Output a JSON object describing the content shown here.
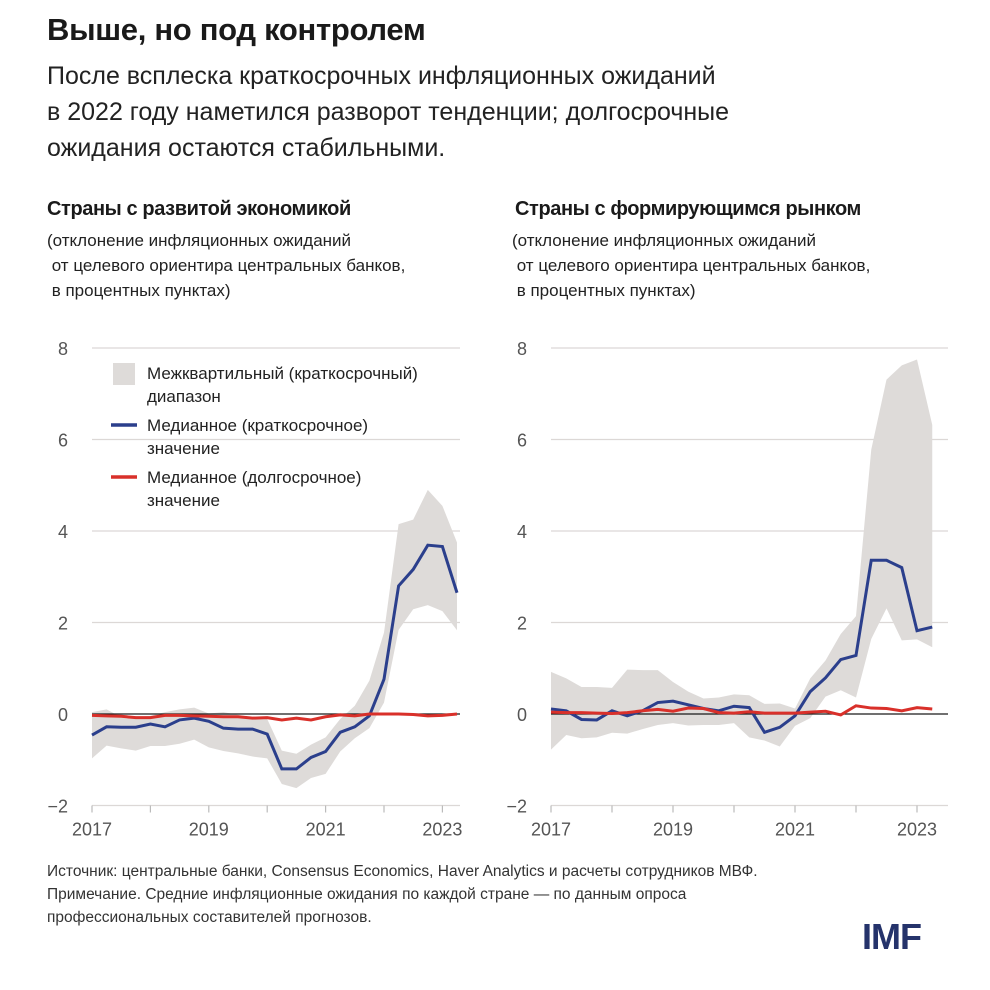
{
  "header": {
    "title": "Выше, но под контролем",
    "subtitle_lines": [
      "После всплеска краткосрочных инфляционных ожиданий",
      "в 2022 году наметился разворот тенденции; долгосрочные",
      "ожидания остаются стабильными."
    ]
  },
  "legend": {
    "band": [
      "Межквартильный (краткосрочный)",
      "диапазон"
    ],
    "short": [
      "Медианное (краткосрочное)",
      "значение"
    ],
    "long": [
      "Медианное (долгосрочное)",
      "значение"
    ]
  },
  "colors": {
    "band": "#dedbd9",
    "short": "#2b3f8c",
    "long": "#d9302a",
    "zero": "#1a1a1a",
    "grid": "#dcd8d6",
    "logo": "#25336b"
  },
  "chart_data": [
    {
      "type": "line",
      "title": "Страны с развитой экономикой",
      "unit_lines": [
        "(отклонение инфляционных ожиданий",
        " от целевого ориентира центральных банков,",
        " в процентных пунктах)"
      ],
      "x_start": "2017Q1",
      "x_end": "2023Q2",
      "frequency": "quarterly",
      "xticks": [
        "2017",
        "2019",
        "2021",
        "2023"
      ],
      "yticks": [
        "8",
        "6",
        "4",
        "2",
        "0",
        "−2"
      ],
      "ylim": [
        -2,
        8
      ],
      "grid": true,
      "series": [
        {
          "name": "Медианное (краткосрочное) значение",
          "values": [
            -0.46,
            -0.28,
            -0.29,
            -0.29,
            -0.22,
            -0.28,
            -0.13,
            -0.09,
            -0.16,
            -0.31,
            -0.33,
            -0.33,
            -0.44,
            -1.2,
            -1.2,
            -0.95,
            -0.82,
            -0.4,
            -0.28,
            -0.04,
            0.76,
            2.8,
            3.16,
            3.69,
            3.66,
            2.65
          ]
        },
        {
          "name": "Медианное (долгосрочное) значение",
          "values": [
            -0.03,
            -0.04,
            -0.05,
            -0.08,
            -0.08,
            -0.03,
            -0.03,
            -0.04,
            -0.05,
            -0.06,
            -0.06,
            -0.09,
            -0.08,
            -0.13,
            -0.09,
            -0.13,
            -0.06,
            -0.02,
            -0.04,
            0.0,
            0.0,
            0.0,
            -0.01,
            -0.04,
            -0.03,
            0.0
          ]
        }
      ],
      "band": {
        "name": "Межквартильный (краткосрочный) диапазон",
        "upper": [
          0.04,
          0.1,
          -0.07,
          -0.07,
          -0.04,
          0.04,
          0.1,
          0.14,
          0.01,
          0.04,
          -0.02,
          -0.07,
          -0.11,
          -0.8,
          -0.87,
          -0.67,
          -0.51,
          -0.11,
          0.18,
          0.73,
          1.78,
          4.15,
          4.25,
          4.9,
          4.55,
          3.75
        ],
        "lower": [
          -0.97,
          -0.69,
          -0.75,
          -0.8,
          -0.7,
          -0.7,
          -0.65,
          -0.56,
          -0.73,
          -0.81,
          -0.86,
          -0.93,
          -0.97,
          -1.53,
          -1.62,
          -1.4,
          -1.31,
          -0.82,
          -0.53,
          -0.31,
          0.25,
          1.84,
          2.29,
          2.38,
          2.25,
          1.83
        ]
      }
    },
    {
      "type": "line",
      "title": "Страны с формирующимся рынком",
      "unit_lines": [
        "(отклонение инфляционных ожиданий",
        " от целевого ориентира центральных банков,",
        " в процентных пунктах)"
      ],
      "x_start": "2017Q1",
      "x_end": "2023Q2",
      "frequency": "quarterly",
      "xticks": [
        "2017",
        "2019",
        "2021",
        "2023"
      ],
      "yticks": [
        "8",
        "6",
        "4",
        "2",
        "0",
        "−2"
      ],
      "ylim": [
        -2,
        8
      ],
      "grid": true,
      "series": [
        {
          "name": "Медианное (краткосрочное) значение",
          "values": [
            0.11,
            0.07,
            -0.12,
            -0.13,
            0.07,
            -0.04,
            0.07,
            0.25,
            0.28,
            0.2,
            0.12,
            0.07,
            0.17,
            0.14,
            -0.4,
            -0.29,
            -0.04,
            0.49,
            0.79,
            1.19,
            1.28,
            3.36,
            3.36,
            3.2,
            1.82,
            1.9
          ]
        },
        {
          "name": "Медианное (долгосрочное) значение",
          "values": [
            0.04,
            0.03,
            0.03,
            0.02,
            0.01,
            0.03,
            0.07,
            0.1,
            0.06,
            0.13,
            0.12,
            0.03,
            0.02,
            0.05,
            0.02,
            0.02,
            0.02,
            0.04,
            0.06,
            -0.02,
            0.18,
            0.13,
            0.12,
            0.07,
            0.14,
            0.11
          ]
        }
      ],
      "band": {
        "name": "Межквартильный (краткосрочный) диапазон",
        "upper": [
          0.92,
          0.78,
          0.59,
          0.59,
          0.57,
          0.97,
          0.96,
          0.96,
          0.7,
          0.49,
          0.34,
          0.36,
          0.43,
          0.41,
          0.22,
          0.23,
          0.12,
          0.78,
          1.17,
          1.75,
          2.14,
          5.78,
          7.31,
          7.62,
          7.75,
          6.32
        ],
        "lower": [
          -0.78,
          -0.46,
          -0.53,
          -0.51,
          -0.41,
          -0.43,
          -0.33,
          -0.24,
          -0.2,
          -0.25,
          -0.24,
          -0.24,
          -0.2,
          -0.51,
          -0.58,
          -0.71,
          -0.26,
          -0.09,
          0.38,
          0.52,
          0.36,
          1.64,
          2.31,
          1.61,
          1.63,
          1.46
        ]
      }
    }
  ],
  "footer": {
    "lines": [
      "Источник: центральные банки, Consensus Economics, Haver Analytics и расчеты сотрудников МВФ.",
      "Примечание. Средние инфляционные ожидания по каждой стране — по данным опроса",
      "профессиональных составителей прогнозов."
    ],
    "logo": "IMF"
  }
}
